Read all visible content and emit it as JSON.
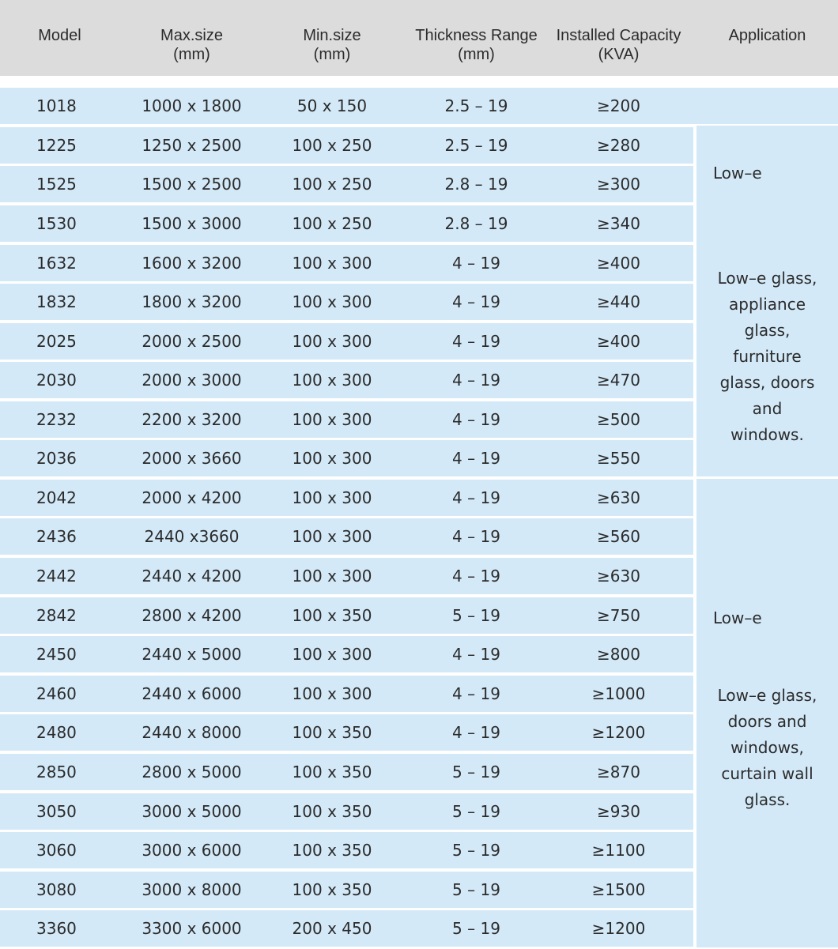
{
  "columns": {
    "model": "Model",
    "max_size": [
      "Max.size",
      "(mm)"
    ],
    "min_size": [
      "Min.size",
      "(mm)"
    ],
    "thickness": [
      "Thickness Range",
      "(mm)"
    ],
    "capacity": [
      "Installed Capacity",
      "(KVA)"
    ],
    "application": "Application"
  },
  "rows": [
    [
      "1018",
      "1000 x 1800",
      "50 x 150",
      "2.5 – 19",
      "≥200"
    ],
    [
      "1225",
      "1250 x 2500",
      "100 x 250",
      "2.5 – 19",
      "≥280"
    ],
    [
      "1525",
      "1500 x 2500",
      "100 x 250",
      "2.8 – 19",
      "≥300"
    ],
    [
      "1530",
      "1500 x 3000",
      "100 x 250",
      "2.8 – 19",
      "≥340"
    ],
    [
      "1632",
      "1600 x 3200",
      "100 x 300",
      "4 – 19",
      "≥400"
    ],
    [
      "1832",
      "1800 x 3200",
      "100 x 300",
      "4 – 19",
      "≥440"
    ],
    [
      "2025",
      "2000 x 2500",
      "100 x 300",
      "4 – 19",
      "≥400"
    ],
    [
      "2030",
      "2000 x 3000",
      "100 x 300",
      "4 – 19",
      "≥470"
    ],
    [
      "2232",
      "2200 x 3200",
      "100 x 300",
      "4 – 19",
      "≥500"
    ],
    [
      "2036",
      "2000 x 3660",
      "100 x 300",
      "4 – 19",
      "≥550"
    ],
    [
      "2042",
      "2000 x 4200",
      "100 x 300",
      "4 – 19",
      "≥630"
    ],
    [
      "2436",
      "2440 x3660",
      "100 x 300",
      "4 – 19",
      "≥560"
    ],
    [
      "2442",
      "2440 x 4200",
      "100 x 300",
      "4 – 19",
      "≥630"
    ],
    [
      "2842",
      "2800 x 4200",
      "100 x 350",
      "5 – 19",
      "≥750"
    ],
    [
      "2450",
      "2440 x 5000",
      "100 x 300",
      "4 – 19",
      "≥800"
    ],
    [
      "2460",
      "2440 x 6000",
      "100 x 300",
      "4 – 19",
      "≥1000"
    ],
    [
      "2480",
      "2440 x 8000",
      "100 x 350",
      "4 – 19",
      "≥1200"
    ],
    [
      "2850",
      "2800 x 5000",
      "100 x 350",
      "5 – 19",
      "≥870"
    ],
    [
      "3050",
      "3000 x 5000",
      "100 x 350",
      "5 – 19",
      "≥930"
    ],
    [
      "3060",
      "3000 x 6000",
      "100 x 350",
      "5 – 19",
      "≥1100"
    ],
    [
      "3080",
      "3000 x 8000",
      "100 x 350",
      "5 – 19",
      "≥1500"
    ],
    [
      "3360",
      "3300 x 6000",
      "200 x 450",
      "5 – 19",
      "≥1200"
    ]
  ],
  "applications": [
    {
      "short": "Low–e",
      "lines": [
        "Low–e glass,",
        "appliance",
        "glass,",
        "furniture",
        "glass, doors",
        "and",
        "windows."
      ]
    },
    {
      "short": "Low–e",
      "lines": [
        "Low–e glass,",
        "doors and",
        "windows,",
        "curtain wall",
        "glass."
      ]
    }
  ]
}
